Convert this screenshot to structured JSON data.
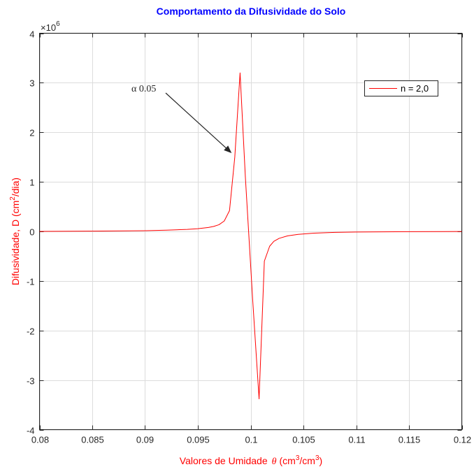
{
  "chart_data": {
    "type": "line",
    "title": "Comportamento da Difusividade do Solo",
    "xlabel_prefix": "Valores de Umidade",
    "xlabel_theta": "θ",
    "xlabel_unit_1": "(cm",
    "xlabel_sup_1": "3",
    "xlabel_unit_2": "/cm",
    "xlabel_sup_2": "3",
    "xlabel_unit_3": ")",
    "ylabel_prefix": "Difusividade, D (cm",
    "ylabel_sup": "2",
    "ylabel_suffix": "/dia)",
    "y_exponent_base": "×10",
    "y_exponent_power": "6",
    "xlim": [
      0.08,
      0.12
    ],
    "ylim": [
      -4000000,
      4000000
    ],
    "grid": true,
    "legend_position": "top-right",
    "x_ticks": [
      0.08,
      0.085,
      0.09,
      0.095,
      0.1,
      0.105,
      0.11,
      0.115,
      0.12
    ],
    "x_tick_labels": [
      "0.08",
      "0.085",
      "0.09",
      "0.095",
      "0.1",
      "0.105",
      "0.11",
      "0.115",
      "0.12"
    ],
    "y_ticks": [
      -4000000,
      -3000000,
      -2000000,
      -1000000,
      0,
      1000000,
      2000000,
      3000000,
      4000000
    ],
    "y_tick_labels": [
      "-4",
      "-3",
      "-2",
      "-1",
      "0",
      "1",
      "2",
      "3",
      "4"
    ],
    "annotation": {
      "text": "α 0.05",
      "x": 0.0982,
      "y": 1580000
    },
    "series": [
      {
        "name": "n = 2,0",
        "color": "#ff0000",
        "x": [
          0.08,
          0.085,
          0.09,
          0.092,
          0.094,
          0.095,
          0.096,
          0.0965,
          0.097,
          0.0975,
          0.098,
          0.0985,
          0.099,
          0.0995,
          0.1002,
          0.1008,
          0.1013,
          0.1018,
          0.1022,
          0.1027,
          0.1035,
          0.1045,
          0.106,
          0.108,
          0.11,
          0.115,
          0.12
        ],
        "y": [
          0,
          5000,
          15000,
          25000,
          40000,
          55000,
          80000,
          100000,
          135000,
          210000,
          420000,
          1500000,
          3200000,
          1100000,
          -1400000,
          -3380000,
          -600000,
          -300000,
          -200000,
          -140000,
          -90000,
          -60000,
          -35000,
          -20000,
          -12000,
          -5000,
          -2000
        ]
      }
    ]
  }
}
